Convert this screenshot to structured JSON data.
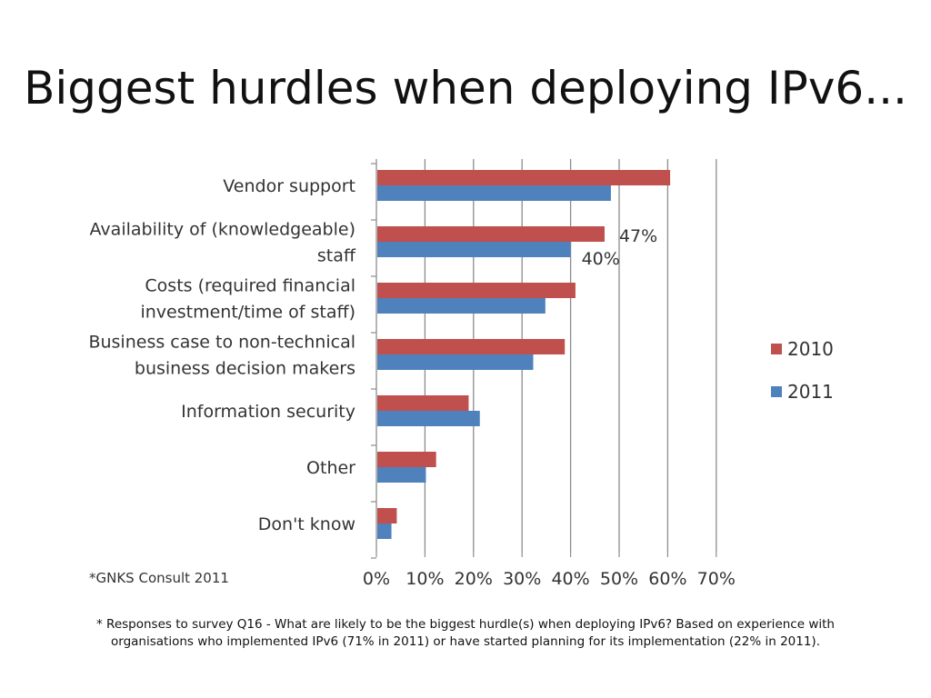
{
  "slide": {
    "title": "Biggest hurdles when deploying IPv6...",
    "footnote": "* Responses to survey Q16 - What are likely to be the biggest hurdle(s) when deploying IPv6? Based on experience with organisations who implemented IPv6 (71% in 2011) or have started planning for its implementation (22% in 2011)."
  },
  "chart_data": {
    "type": "bar",
    "orientation": "horizontal",
    "title": "",
    "xlabel": "",
    "ylabel": "",
    "xlim": [
      0,
      70
    ],
    "grid": true,
    "legend_position": "right",
    "source": "*GNKS Consult 2011",
    "x_ticks": [
      "0%",
      "10%",
      "20%",
      "30%",
      "40%",
      "50%",
      "60%",
      "70%"
    ],
    "categories": [
      [
        "Vendor support"
      ],
      [
        "Availability of (knowledgeable)",
        "staff"
      ],
      [
        "Costs (required financial",
        "investment/time of staff)"
      ],
      [
        "Business case to non-technical",
        "business decision makers"
      ],
      [
        "Information security"
      ],
      [
        "Other"
      ],
      [
        "Don't know"
      ]
    ],
    "series": [
      {
        "name": "2010",
        "color": "#c0504d",
        "values": [
          60.5,
          47,
          41,
          38.8,
          19,
          12.3,
          4.2
        ]
      },
      {
        "name": "2011",
        "color": "#4f81bd",
        "values": [
          48.3,
          40,
          34.8,
          32.3,
          21.3,
          10.2,
          3.1
        ]
      }
    ],
    "annotations": [
      {
        "text": "47%",
        "series": 0,
        "category": 1
      },
      {
        "text": "40%",
        "series": 1,
        "category": 1
      }
    ]
  }
}
